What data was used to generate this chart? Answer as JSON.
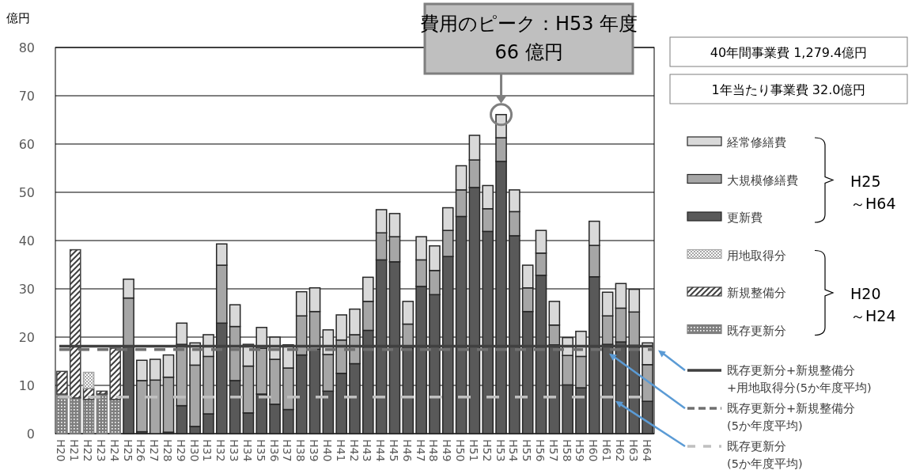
{
  "chart_data": {
    "type": "bar",
    "stacked": true,
    "ylabel": "億円",
    "ylim": [
      0,
      80
    ],
    "yticks": [
      0,
      10,
      20,
      30,
      40,
      50,
      60,
      70,
      80
    ],
    "grid": "y",
    "legend": "right",
    "categories": [
      "H20",
      "H21",
      "H22",
      "H23",
      "H24",
      "H25",
      "H26",
      "H27",
      "H28",
      "H29",
      "H30",
      "H31",
      "H32",
      "H33",
      "H34",
      "H35",
      "H36",
      "H37",
      "H38",
      "H39",
      "H40",
      "H41",
      "H42",
      "H43",
      "H44",
      "H45",
      "H46",
      "H47",
      "H48",
      "H49",
      "H50",
      "H51",
      "H52",
      "H53",
      "H54",
      "H55",
      "H56",
      "H57",
      "H58",
      "H59",
      "H60",
      "H61",
      "H62",
      "H63",
      "H64"
    ],
    "series": [
      {
        "name": "既存更新分",
        "color": "#7f7f7f",
        "values": [
          8.2,
          7.4,
          7.1,
          8.2,
          7.1,
          null,
          null,
          null,
          null,
          null,
          null,
          null,
          null,
          null,
          null,
          null,
          null,
          null,
          null,
          null,
          null,
          null,
          null,
          null,
          null,
          null,
          null,
          null,
          null,
          null,
          null,
          null,
          null,
          null,
          null,
          null,
          null,
          null,
          null,
          null,
          null,
          null,
          null,
          null,
          null
        ]
      },
      {
        "name": "新規整備分",
        "color": "#404040",
        "values": [
          4.7,
          30.7,
          2.3,
          0.6,
          10.6,
          null,
          null,
          null,
          null,
          null,
          null,
          null,
          null,
          null,
          null,
          null,
          null,
          null,
          null,
          null,
          null,
          null,
          null,
          null,
          null,
          null,
          null,
          null,
          null,
          null,
          null,
          null,
          null,
          null,
          null,
          null,
          null,
          null,
          null,
          null,
          null,
          null,
          null,
          null,
          null
        ]
      },
      {
        "name": "用地取得分",
        "color": "#a6a6a6",
        "values": [
          null,
          null,
          3.3,
          null,
          null,
          null,
          null,
          null,
          null,
          null,
          null,
          null,
          null,
          null,
          null,
          null,
          null,
          null,
          null,
          null,
          null,
          null,
          null,
          null,
          null,
          null,
          null,
          null,
          null,
          null,
          null,
          null,
          null,
          null,
          null,
          null,
          null,
          null,
          null,
          null,
          null,
          null,
          null,
          null,
          null
        ]
      },
      {
        "name": "更新費",
        "color": "#595959",
        "values": [
          null,
          null,
          null,
          null,
          null,
          18.0,
          0.4,
          null,
          0.3,
          5.8,
          1.5,
          4.1,
          22.9,
          11.0,
          4.3,
          8.2,
          6.1,
          5.0,
          16.3,
          17.5,
          8.8,
          12.5,
          14.5,
          21.4,
          36.0,
          35.6,
          17.7,
          30.5,
          28.8,
          36.7,
          45.0,
          51.0,
          41.9,
          56.4,
          41.0,
          25.3,
          32.8,
          18.4,
          10.1,
          9.5,
          32.5,
          18.5,
          19.0,
          18.3,
          6.7
        ]
      },
      {
        "name": "大規模修繕費",
        "color": "#a6a6a6",
        "values": [
          null,
          null,
          null,
          null,
          null,
          10.1,
          10.6,
          11.1,
          11.4,
          12.7,
          12.7,
          11.9,
          12.0,
          11.2,
          9.7,
          9.5,
          9.3,
          8.6,
          8.1,
          7.8,
          7.6,
          6.9,
          6.0,
          6.0,
          5.6,
          5.2,
          5.0,
          5.5,
          5.0,
          5.4,
          5.5,
          5.7,
          4.7,
          4.9,
          5.0,
          4.9,
          4.6,
          4.1,
          6.1,
          6.5,
          6.5,
          5.9,
          7.0,
          6.9,
          7.6
        ]
      },
      {
        "name": "経常修繕費",
        "color": "#d9d9d9",
        "values": [
          null,
          null,
          null,
          null,
          null,
          3.9,
          4.2,
          4.3,
          4.6,
          4.4,
          4.6,
          4.5,
          4.4,
          4.5,
          4.5,
          4.3,
          4.6,
          4.8,
          5.0,
          4.9,
          5.1,
          5.2,
          5.3,
          5.0,
          4.8,
          4.8,
          4.7,
          4.8,
          5.1,
          4.7,
          5.0,
          5.1,
          4.8,
          4.8,
          4.5,
          4.7,
          4.7,
          4.9,
          3.7,
          5.2,
          5.0,
          4.9,
          5.1,
          4.7,
          4.5
        ]
      }
    ],
    "ref_lines": [
      {
        "axis": "y",
        "value": 18.1,
        "label": "既存更新分+新規整備分\n+用地取得分(5か年度平均)",
        "color": "#404040",
        "line_style": "solid"
      },
      {
        "axis": "y",
        "value": 17.4,
        "label": "既存更新分+新規整備分\n(5か年度平均)",
        "color": "#707070",
        "line_style": "dashed"
      },
      {
        "axis": "y",
        "value": 7.6,
        "label": "既存更新分\n(5か年度平均)",
        "color": "#c0c0c0",
        "line_style": "dashed"
      }
    ],
    "annotations": [
      {
        "text": "費用のピーク：H53 年度\n66 億円",
        "x": "H53",
        "y": 66.1
      },
      "40年間事業費  1,279.4億円",
      "1年当たり事業費  32.0億円",
      "H25\n～H64",
      "H20\n～H24"
    ]
  }
}
